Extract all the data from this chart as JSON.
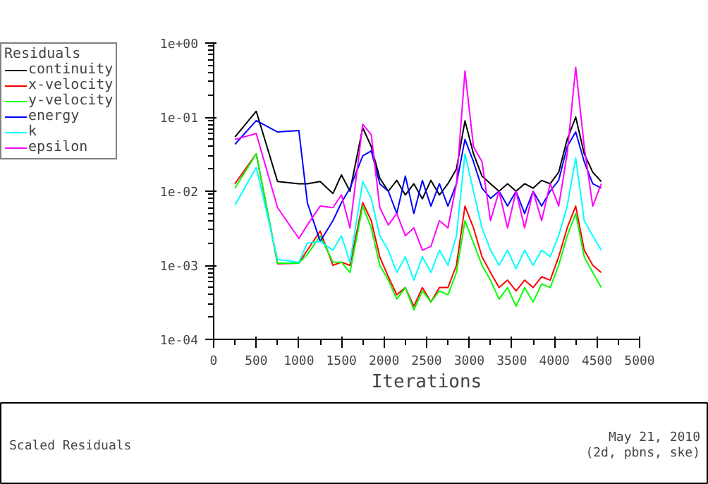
{
  "chart_data": {
    "type": "line",
    "title": "Scaled Residuals",
    "xlabel": "Iterations",
    "legend_title": "Residuals",
    "annotations": [
      "May 21, 2010",
      "(2d, pbns, ske)"
    ],
    "x": [
      250,
      500,
      750,
      1000,
      1100,
      1250,
      1400,
      1500,
      1600,
      1750,
      1850,
      1950,
      2050,
      2150,
      2250,
      2350,
      2450,
      2550,
      2650,
      2750,
      2850,
      2950,
      3050,
      3150,
      3250,
      3350,
      3450,
      3550,
      3650,
      3750,
      3850,
      3950,
      4050,
      4150,
      4250,
      4350,
      4450,
      4550
    ],
    "series": [
      {
        "name": "continuity",
        "color": "#000000",
        "values": [
          0.054,
          0.12,
          0.0135,
          0.0126,
          0.0126,
          0.0135,
          0.0093,
          0.0166,
          0.01,
          0.072,
          0.04,
          0.015,
          0.01,
          0.014,
          0.0089,
          0.0126,
          0.0079,
          0.014,
          0.0089,
          0.0126,
          0.02,
          0.089,
          0.032,
          0.016,
          0.0126,
          0.01,
          0.0126,
          0.01,
          0.0126,
          0.011,
          0.014,
          0.0126,
          0.018,
          0.05,
          0.1,
          0.032,
          0.018,
          0.0135
        ]
      },
      {
        "name": "x-velocity",
        "color": "#ff0000",
        "values": [
          0.0126,
          0.032,
          0.00105,
          0.00107,
          0.0016,
          0.0029,
          0.001,
          0.0011,
          0.001,
          0.007,
          0.004,
          0.0013,
          0.0007,
          0.0004,
          0.0005,
          0.00028,
          0.0005,
          0.00032,
          0.0005,
          0.0005,
          0.001,
          0.0063,
          0.0032,
          0.0013,
          0.0008,
          0.0005,
          0.00063,
          0.00045,
          0.00063,
          0.0005,
          0.0007,
          0.00063,
          0.0013,
          0.0032,
          0.0063,
          0.0016,
          0.001,
          0.0008
        ]
      },
      {
        "name": "y-velocity",
        "color": "#00ff00",
        "values": [
          0.011,
          0.032,
          0.00107,
          0.00107,
          0.0014,
          0.0025,
          0.0011,
          0.0011,
          0.0008,
          0.0063,
          0.0032,
          0.001,
          0.00063,
          0.00035,
          0.0005,
          0.00025,
          0.00045,
          0.00032,
          0.00045,
          0.0004,
          0.0008,
          0.004,
          0.002,
          0.001,
          0.00063,
          0.00035,
          0.0005,
          0.00028,
          0.0005,
          0.00032,
          0.00056,
          0.0005,
          0.001,
          0.0025,
          0.005,
          0.0013,
          0.0008,
          0.0005
        ]
      },
      {
        "name": "energy",
        "color": "#0000ff",
        "values": [
          0.043,
          0.09,
          0.063,
          0.066,
          0.007,
          0.0021,
          0.004,
          0.007,
          0.011,
          0.03,
          0.035,
          0.0126,
          0.01,
          0.005,
          0.016,
          0.005,
          0.014,
          0.0063,
          0.0126,
          0.0063,
          0.0126,
          0.05,
          0.025,
          0.011,
          0.008,
          0.01,
          0.0063,
          0.01,
          0.005,
          0.01,
          0.0063,
          0.01,
          0.014,
          0.04,
          0.063,
          0.025,
          0.0126,
          0.011
        ]
      },
      {
        "name": "k",
        "color": "#00ffff",
        "values": [
          0.0065,
          0.021,
          0.0012,
          0.0011,
          0.002,
          0.0021,
          0.0016,
          0.0025,
          0.0011,
          0.0135,
          0.008,
          0.0025,
          0.0016,
          0.0008,
          0.0013,
          0.00063,
          0.0013,
          0.0008,
          0.0016,
          0.001,
          0.0025,
          0.032,
          0.01,
          0.0032,
          0.0016,
          0.001,
          0.0016,
          0.0009,
          0.0016,
          0.001,
          0.0016,
          0.0013,
          0.0025,
          0.0063,
          0.028,
          0.004,
          0.0025,
          0.0016
        ]
      },
      {
        "name": "epsilon",
        "color": "#ff00ff",
        "values": [
          0.05,
          0.06,
          0.006,
          0.0023,
          0.0035,
          0.0063,
          0.006,
          0.0089,
          0.0032,
          0.08,
          0.058,
          0.006,
          0.0035,
          0.005,
          0.0025,
          0.0032,
          0.0016,
          0.0018,
          0.004,
          0.0032,
          0.0126,
          0.42,
          0.04,
          0.025,
          0.004,
          0.01,
          0.0032,
          0.01,
          0.0032,
          0.01,
          0.004,
          0.0126,
          0.0063,
          0.032,
          0.47,
          0.04,
          0.0063,
          0.0126
        ]
      }
    ],
    "xlim": [
      0,
      5000
    ],
    "xticks": [
      0,
      500,
      1000,
      1500,
      2000,
      2500,
      3000,
      3500,
      4000,
      4500,
      5000
    ],
    "log": true,
    "ylim": [
      0.0001,
      1
    ],
    "yticks": [
      {
        "value": 0.0001,
        "label": "1e-04"
      },
      {
        "value": 0.001,
        "label": "1e-03"
      },
      {
        "value": 0.01,
        "label": "1e-02"
      },
      {
        "value": 0.1,
        "label": "1e-01"
      },
      {
        "value": 1,
        "label": "1e+00"
      }
    ],
    "legend": "top left",
    "grid": false
  }
}
